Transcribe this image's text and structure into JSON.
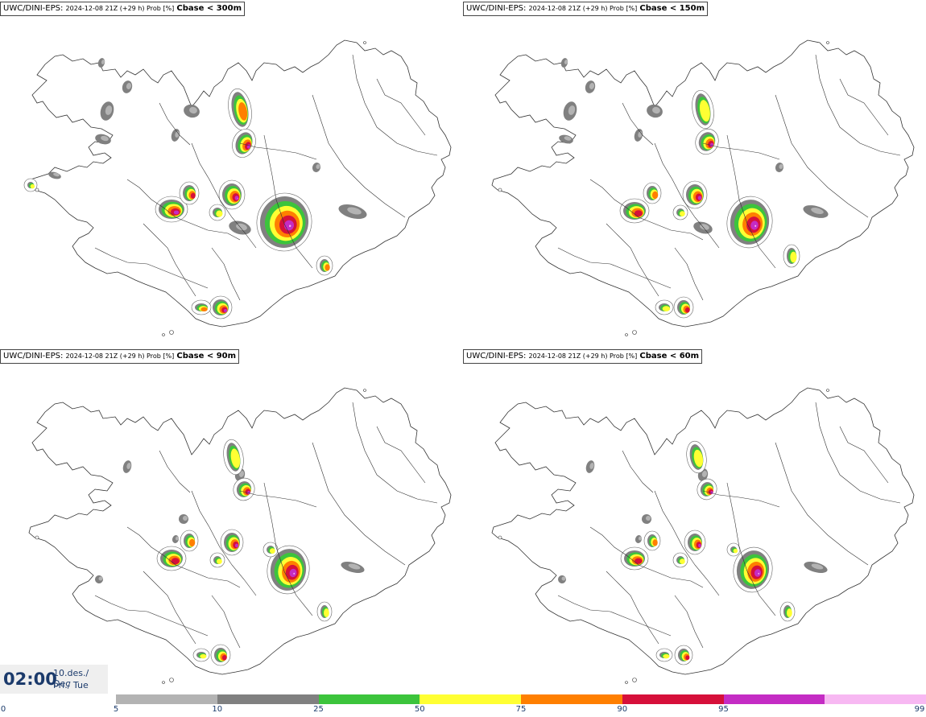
{
  "panels": [
    {
      "model": "UWC/DINI-EPS",
      "run": "2024-12-08 21Z (+29 h) Prob [%]",
      "field": "Cbase < 300m"
    },
    {
      "model": "UWC/DINI-EPS",
      "run": "2024-12-08 21Z (+29 h) Prob [%]",
      "field": "Cbase < 150m"
    },
    {
      "model": "UWC/DINI-EPS",
      "run": "2024-12-08 21Z (+29 h) Prob [%]",
      "field": "Cbase < 90m"
    },
    {
      "model": "UWC/DINI-EPS",
      "run": "2024-12-08 21Z (+29 h) Prob [%]",
      "field": "Cbase < 60m"
    }
  ],
  "valid_time": {
    "clock": "02:00",
    "date_line1": "10.des./ Dec",
    "date_line2": "Þri./ Tue"
  },
  "legend": {
    "ticks": [
      "0",
      "5",
      "10",
      "25",
      "50",
      "75",
      "90",
      "95",
      "99"
    ],
    "colors": [
      "#b3b3b3",
      "#808080",
      "#3cc43c",
      "#ffff33",
      "#ff7f00",
      "#d6103a",
      "#c42cc4",
      "#f7b8f2"
    ]
  },
  "colors": {
    "outline": "#333333",
    "p5": "#b3b3b3",
    "p10": "#808080",
    "p25": "#3cc43c",
    "p50": "#ffff33",
    "p75": "#ff7f00",
    "p90": "#d6103a",
    "p95": "#c42cc4",
    "p99": "#f7b8f2"
  }
}
